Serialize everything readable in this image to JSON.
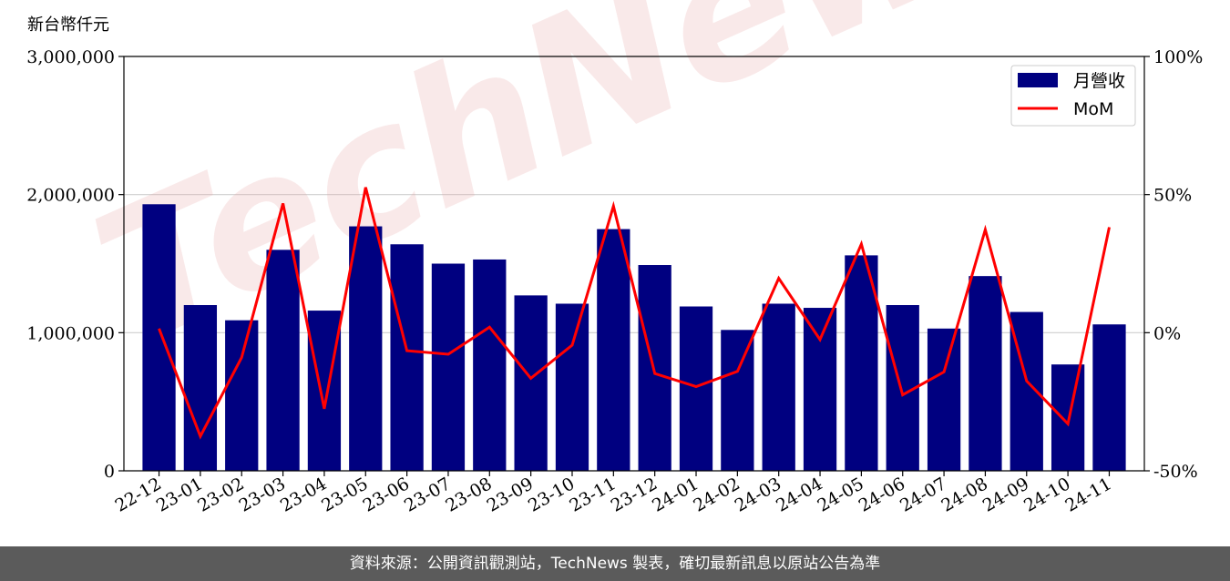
{
  "chart_data": {
    "type": "bar",
    "unit_label": "新台幣仟元",
    "categories": [
      "22-12",
      "23-01",
      "23-02",
      "23-03",
      "23-04",
      "23-05",
      "23-06",
      "23-07",
      "23-08",
      "23-09",
      "23-10",
      "23-11",
      "23-12",
      "24-01",
      "24-02",
      "24-03",
      "24-04",
      "24-05",
      "24-06",
      "24-07",
      "24-08",
      "24-09",
      "24-10",
      "24-11"
    ],
    "series": [
      {
        "name": "月營收",
        "type": "bar",
        "axis": "left",
        "color": "#000080",
        "values": [
          1930000,
          1200000,
          1090000,
          1600000,
          1160000,
          1770000,
          1640000,
          1500000,
          1530000,
          1270000,
          1210000,
          1750000,
          1490000,
          1190000,
          1020000,
          1210000,
          1180000,
          1560000,
          1200000,
          1030000,
          1410000,
          1150000,
          770000,
          1060000
        ]
      },
      {
        "name": "MoM",
        "type": "line",
        "axis": "right",
        "color": "#ff0000",
        "values": [
          1.5,
          -37.5,
          -9.0,
          46.8,
          -27.5,
          52.6,
          -6.5,
          -7.8,
          2.0,
          -16.5,
          -4.5,
          45.8,
          -14.8,
          -19.5,
          -14.0,
          19.7,
          -2.5,
          32.1,
          -22.5,
          -14.2,
          37.3,
          -17.5,
          -33.0,
          38.2
        ]
      }
    ],
    "y_left": {
      "min": 0,
      "max": 3000000,
      "ticks": [
        "0",
        "1,000,000",
        "2,000,000",
        "3,000,000"
      ]
    },
    "y_right": {
      "min": -50,
      "max": 100,
      "ticks": [
        "-50%",
        "0%",
        "50%",
        "100%"
      ]
    },
    "grid": "horizontal",
    "legend_position": "top-right"
  },
  "watermark": "TechNews",
  "footer": {
    "text": "資料來源：公開資訊觀測站，TechNews 製表，確切最新訊息以原站公告為準"
  }
}
